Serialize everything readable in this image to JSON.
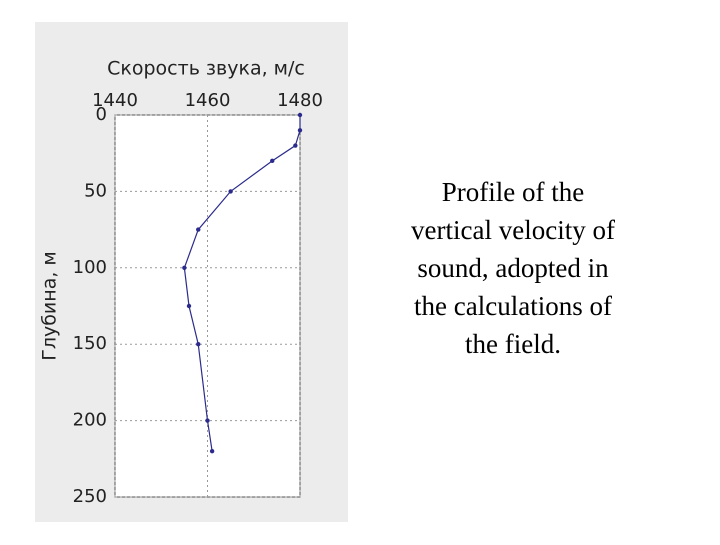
{
  "chart_data": {
    "type": "line",
    "title": "Скорость звука, м/с",
    "ylabel": "Глубина, м",
    "x": [
      1480,
      1480,
      1479,
      1474,
      1465,
      1458,
      1455,
      1456,
      1458,
      1460,
      1461
    ],
    "y": [
      0,
      10,
      20,
      30,
      50,
      75,
      100,
      125,
      150,
      200,
      220
    ],
    "color": "#2b2b8c",
    "xlim": [
      1440,
      1480
    ],
    "xticks": [
      1440,
      1460,
      1480
    ],
    "x_axis_position": "top",
    "ylim": [
      0,
      250
    ],
    "yticks": [
      0,
      50,
      100,
      150,
      200,
      250
    ],
    "y_inverted": true,
    "grid": true
  },
  "caption": [
    "Profile of the",
    "vertical velocity of",
    "sound, adopted in",
    "the calculations of",
    "the field."
  ]
}
